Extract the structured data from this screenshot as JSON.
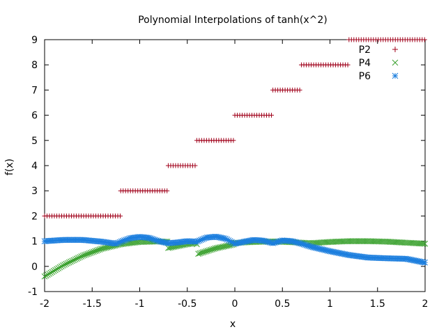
{
  "chart_data": {
    "type": "scatter",
    "title": "Polynomial Interpolations of tanh(x^2)",
    "xlabel": "x",
    "ylabel": "f(x)",
    "xlim": [
      -2,
      2
    ],
    "ylim": [
      -1,
      9
    ],
    "xticks": [
      -2,
      -1.5,
      -1,
      -0.5,
      0,
      0.5,
      1,
      1.5,
      2
    ],
    "xtick_labels": [
      "-2",
      "-1.5",
      "-1",
      "-0.5",
      "0",
      "0.5",
      "1",
      "1.5",
      "2"
    ],
    "yticks": [
      -1,
      0,
      1,
      2,
      3,
      4,
      5,
      6,
      7,
      8,
      9
    ],
    "ytick_labels": [
      "-1",
      "0",
      "1",
      "2",
      "3",
      "4",
      "5",
      "6",
      "7",
      "8",
      "9"
    ],
    "grid": false,
    "legend_position": "top-right",
    "series": [
      {
        "name": "P2",
        "marker": "plus",
        "color": "#a0001a",
        "segments": [
          {
            "x": [
              -2.0,
              -1.2
            ],
            "y": 2
          },
          {
            "x": [
              -1.2,
              -0.7
            ],
            "y": 3
          },
          {
            "x": [
              -0.7,
              -0.4
            ],
            "y": 4
          },
          {
            "x": [
              -0.4,
              0.0
            ],
            "y": 5
          },
          {
            "x": [
              0.0,
              0.4
            ],
            "y": 6
          },
          {
            "x": [
              0.4,
              0.7
            ],
            "y": 7
          },
          {
            "x": [
              0.7,
              1.2
            ],
            "y": 8
          },
          {
            "x": [
              1.2,
              2.0
            ],
            "y": 9
          }
        ]
      },
      {
        "name": "P4",
        "marker": "cross",
        "color": "#3aa12e",
        "x": [
          -2.0,
          -1.8,
          -1.6,
          -1.4,
          -1.2,
          -1.0,
          -0.8,
          -0.7,
          -0.7,
          -0.5,
          -0.4,
          -0.4,
          -0.2,
          0.0,
          0.0,
          0.2,
          0.4,
          0.6,
          0.8,
          1.0,
          1.2,
          1.4,
          1.6,
          1.8,
          2.0
        ],
        "y": [
          -0.4,
          0.05,
          0.42,
          0.7,
          0.88,
          0.97,
          0.99,
          0.98,
          0.73,
          0.88,
          0.93,
          0.48,
          0.72,
          0.88,
          0.93,
          0.97,
          0.99,
          0.96,
          0.92,
          0.97,
          1.0,
          1.0,
          0.98,
          0.94,
          0.9
        ]
      },
      {
        "name": "P6",
        "marker": "star",
        "color": "#1c7ede",
        "x": [
          -2.0,
          -1.8,
          -1.6,
          -1.4,
          -1.25,
          -1.2,
          -1.1,
          -1.0,
          -0.9,
          -0.8,
          -0.7,
          -0.6,
          -0.5,
          -0.4,
          -0.3,
          -0.2,
          -0.1,
          0.0,
          0.1,
          0.2,
          0.3,
          0.4,
          0.5,
          0.6,
          0.7,
          0.8,
          1.0,
          1.2,
          1.4,
          1.6,
          1.8,
          2.0
        ],
        "y": [
          1.0,
          1.05,
          1.05,
          0.98,
          0.9,
          0.98,
          1.12,
          1.17,
          1.13,
          1.0,
          0.92,
          0.95,
          1.0,
          0.98,
          1.14,
          1.18,
          1.1,
          0.9,
          0.98,
          1.05,
          1.02,
          0.92,
          1.03,
          1.0,
          0.9,
          0.78,
          0.6,
          0.45,
          0.35,
          0.32,
          0.3,
          0.15
        ]
      }
    ]
  }
}
